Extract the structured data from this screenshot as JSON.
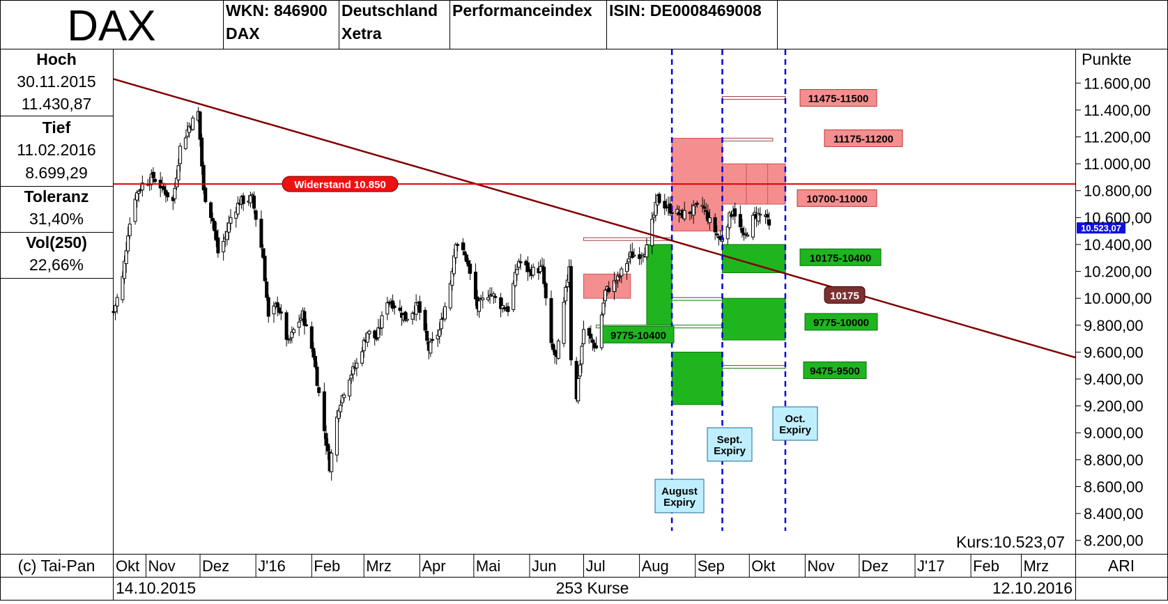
{
  "header": {
    "title": "DAX",
    "cells": [
      {
        "line1": "WKN: 846900",
        "line2": "DAX"
      },
      {
        "line1": "Deutschland",
        "line2": "Xetra"
      },
      {
        "line1": "Performanceindex",
        "line2": ""
      },
      {
        "line1": "ISIN: DE0008469008",
        "line2": ""
      }
    ]
  },
  "stats": [
    {
      "label": "Hoch",
      "lines": [
        "30.11.2015",
        "11.430,87"
      ]
    },
    {
      "label": "Tief",
      "lines": [
        "11.02.2016",
        "8.699,29"
      ]
    },
    {
      "label": "Toleranz",
      "lines": [
        "31,40%"
      ]
    },
    {
      "label": "Vol(250)",
      "lines": [
        "22,66%"
      ]
    }
  ],
  "footer": {
    "copyright": "(c) Tai-Pan",
    "start_date": "14.10.2015",
    "count": "253 Kurse",
    "end_date": "12.10.2016",
    "ari": "ARI"
  },
  "chart_data": {
    "type": "candlestick",
    "y_axis_label": "Punkte",
    "ylim": [
      8100,
      11850
    ],
    "yticks": [
      8200,
      8400,
      8600,
      8800,
      9000,
      9200,
      9400,
      9600,
      9800,
      10000,
      10200,
      10400,
      10600,
      10800,
      11000,
      11200,
      11400,
      11600
    ],
    "ytick_labels": [
      "8.200,00",
      "8.400,00",
      "8.600,00",
      "8.800,00",
      "9.000,00",
      "9.200,00",
      "9.400,00",
      "9.600,00",
      "9.800,00",
      "10.000,00",
      "10.200,00",
      "10.400,00",
      "10.600,00",
      "10.800,00",
      "11.000,00",
      "11.200,00",
      "11.400,00",
      "11.600,00"
    ],
    "x_start": "2015-10-14",
    "x_end": "2017-03-31",
    "x_months": [
      {
        "label": "Okt",
        "date": "2015-10-01"
      },
      {
        "label": "Nov",
        "date": "2015-11-01"
      },
      {
        "label": "Dez",
        "date": "2015-12-01"
      },
      {
        "label": "J'16",
        "date": "2016-01-01"
      },
      {
        "label": "Feb",
        "date": "2016-02-01"
      },
      {
        "label": "Mrz",
        "date": "2016-03-01"
      },
      {
        "label": "Apr",
        "date": "2016-04-01"
      },
      {
        "label": "Mai",
        "date": "2016-05-01"
      },
      {
        "label": "Jun",
        "date": "2016-06-01"
      },
      {
        "label": "Jul",
        "date": "2016-07-01"
      },
      {
        "label": "Aug",
        "date": "2016-08-01"
      },
      {
        "label": "Sep",
        "date": "2016-09-01"
      },
      {
        "label": "Okt",
        "date": "2016-10-01"
      },
      {
        "label": "Nov",
        "date": "2016-11-01"
      },
      {
        "label": "Dez",
        "date": "2016-12-01"
      },
      {
        "label": "J'17",
        "date": "2017-01-01"
      },
      {
        "label": "Feb",
        "date": "2017-02-01"
      },
      {
        "label": "Mrz",
        "date": "2017-03-01"
      }
    ],
    "close_path": [
      {
        "date": "2015-10-14",
        "close": 9900
      },
      {
        "date": "2015-10-19",
        "close": 10150
      },
      {
        "date": "2015-10-22",
        "close": 10490
      },
      {
        "date": "2015-10-26",
        "close": 10760
      },
      {
        "date": "2015-10-30",
        "close": 10850
      },
      {
        "date": "2015-11-05",
        "close": 10900
      },
      {
        "date": "2015-11-10",
        "close": 10820
      },
      {
        "date": "2015-11-16",
        "close": 10720
      },
      {
        "date": "2015-11-20",
        "close": 11120
      },
      {
        "date": "2015-11-25",
        "close": 11280
      },
      {
        "date": "2015-11-30",
        "close": 11380
      },
      {
        "date": "2015-12-03",
        "close": 10790
      },
      {
        "date": "2015-12-08",
        "close": 10580
      },
      {
        "date": "2015-12-11",
        "close": 10340
      },
      {
        "date": "2015-12-15",
        "close": 10450
      },
      {
        "date": "2015-12-18",
        "close": 10600
      },
      {
        "date": "2015-12-23",
        "close": 10720
      },
      {
        "date": "2015-12-30",
        "close": 10743
      },
      {
        "date": "2016-01-05",
        "close": 10310
      },
      {
        "date": "2016-01-08",
        "close": 9850
      },
      {
        "date": "2016-01-13",
        "close": 9960
      },
      {
        "date": "2016-01-19",
        "close": 9660
      },
      {
        "date": "2016-01-22",
        "close": 9760
      },
      {
        "date": "2016-01-27",
        "close": 9880
      },
      {
        "date": "2016-02-02",
        "close": 9580
      },
      {
        "date": "2016-02-05",
        "close": 9290
      },
      {
        "date": "2016-02-11",
        "close": 8750
      },
      {
        "date": "2016-02-16",
        "close": 9200
      },
      {
        "date": "2016-02-22",
        "close": 9420
      },
      {
        "date": "2016-02-26",
        "close": 9510
      },
      {
        "date": "2016-03-03",
        "close": 9750
      },
      {
        "date": "2016-03-08",
        "close": 9700
      },
      {
        "date": "2016-03-14",
        "close": 9990
      },
      {
        "date": "2016-03-18",
        "close": 9950
      },
      {
        "date": "2016-03-24",
        "close": 9850
      },
      {
        "date": "2016-03-31",
        "close": 9950
      },
      {
        "date": "2016-04-06",
        "close": 9620
      },
      {
        "date": "2016-04-12",
        "close": 9760
      },
      {
        "date": "2016-04-18",
        "close": 10120
      },
      {
        "date": "2016-04-21",
        "close": 10430
      },
      {
        "date": "2016-04-27",
        "close": 10290
      },
      {
        "date": "2016-05-03",
        "close": 9930
      },
      {
        "date": "2016-05-10",
        "close": 10050
      },
      {
        "date": "2016-05-16",
        "close": 9950
      },
      {
        "date": "2016-05-20",
        "close": 9920
      },
      {
        "date": "2016-05-26",
        "close": 10280
      },
      {
        "date": "2016-06-01",
        "close": 10200
      },
      {
        "date": "2016-06-08",
        "close": 10220
      },
      {
        "date": "2016-06-13",
        "close": 9640
      },
      {
        "date": "2016-06-16",
        "close": 9550
      },
      {
        "date": "2016-06-23",
        "close": 10250
      },
      {
        "date": "2016-06-24",
        "close": 9560
      },
      {
        "date": "2016-06-27",
        "close": 9270
      },
      {
        "date": "2016-07-01",
        "close": 9770
      },
      {
        "date": "2016-07-08",
        "close": 9630
      },
      {
        "date": "2016-07-13",
        "close": 10050
      },
      {
        "date": "2016-07-20",
        "close": 10140
      },
      {
        "date": "2016-07-27",
        "close": 10320
      },
      {
        "date": "2016-08-01",
        "close": 10330
      },
      {
        "date": "2016-08-05",
        "close": 10370
      },
      {
        "date": "2016-08-11",
        "close": 10740
      },
      {
        "date": "2016-08-17",
        "close": 10670
      },
      {
        "date": "2016-08-24",
        "close": 10620
      },
      {
        "date": "2016-08-30",
        "close": 10650
      },
      {
        "date": "2016-09-05",
        "close": 10690
      },
      {
        "date": "2016-09-09",
        "close": 10570
      },
      {
        "date": "2016-09-15",
        "close": 10430
      },
      {
        "date": "2016-09-22",
        "close": 10670
      },
      {
        "date": "2016-09-28",
        "close": 10440
      },
      {
        "date": "2016-10-04",
        "close": 10620
      },
      {
        "date": "2016-10-10",
        "close": 10620
      },
      {
        "date": "2016-10-12",
        "close": 10523
      }
    ],
    "last_price_label": "10.523,07",
    "kurs_label": "Kurs:10.523,07",
    "resistance": {
      "value": 10850,
      "label": "Widerstand 10.850"
    },
    "trendline": [
      {
        "date": "2015-10-14",
        "value": 11630
      },
      {
        "date": "2017-03-31",
        "value": 9560
      }
    ],
    "expiry_lines": [
      {
        "date": "2016-08-19",
        "label": "August Expiry"
      },
      {
        "date": "2016-09-16",
        "label": "Sept. Expiry"
      },
      {
        "date": "2016-10-21",
        "label": "Oct. Expiry"
      }
    ],
    "red_zones": [
      {
        "from": "2016-07-01",
        "to": "2016-07-27",
        "low": 10000,
        "high": 10180
      },
      {
        "from": "2016-08-19",
        "to": "2016-09-16",
        "low": 10500,
        "high": 11190
      },
      {
        "from": "2016-09-16",
        "to": "2016-10-21",
        "low": 10700,
        "high": 11000
      }
    ],
    "green_zones": [
      {
        "from": "2016-08-05",
        "to": "2016-08-19",
        "low": 9800,
        "high": 10400
      },
      {
        "from": "2016-08-19",
        "to": "2016-09-16",
        "low": 9210,
        "high": 9600
      },
      {
        "from": "2016-09-16",
        "to": "2016-10-21",
        "low": 10190,
        "high": 10400
      },
      {
        "from": "2016-09-16",
        "to": "2016-10-21",
        "low": 9690,
        "high": 10000
      }
    ],
    "level_lines": [
      {
        "from": "2016-07-01",
        "to": "2016-08-19",
        "value": 10440,
        "color": "red"
      },
      {
        "from": "2016-09-16",
        "to": "2016-10-21",
        "value": 11490,
        "color": "red"
      },
      {
        "from": "2016-09-16",
        "to": "2016-10-14",
        "value": 11180,
        "color": "red"
      },
      {
        "from": "2016-07-08",
        "to": "2016-08-19",
        "value": 9790,
        "color": "green"
      },
      {
        "from": "2016-08-19",
        "to": "2016-09-16",
        "value": 9995,
        "color": "green"
      },
      {
        "from": "2016-08-19",
        "to": "2016-09-16",
        "value": 9790,
        "color": "green"
      },
      {
        "from": "2016-09-16",
        "to": "2016-10-21",
        "value": 9490,
        "color": "green"
      }
    ],
    "zone_labels": [
      {
        "text": "11475-11500",
        "color": "red"
      },
      {
        "text": "11175-11200",
        "color": "red"
      },
      {
        "text": "10700-11000",
        "color": "red"
      },
      {
        "text": "10175-10400",
        "color": "green"
      },
      {
        "text": "10175",
        "color": "brown"
      },
      {
        "text": "9775-10000",
        "color": "green"
      },
      {
        "text": "9475-9500",
        "color": "green"
      },
      {
        "text": "9775-10400",
        "color": "green"
      }
    ]
  }
}
